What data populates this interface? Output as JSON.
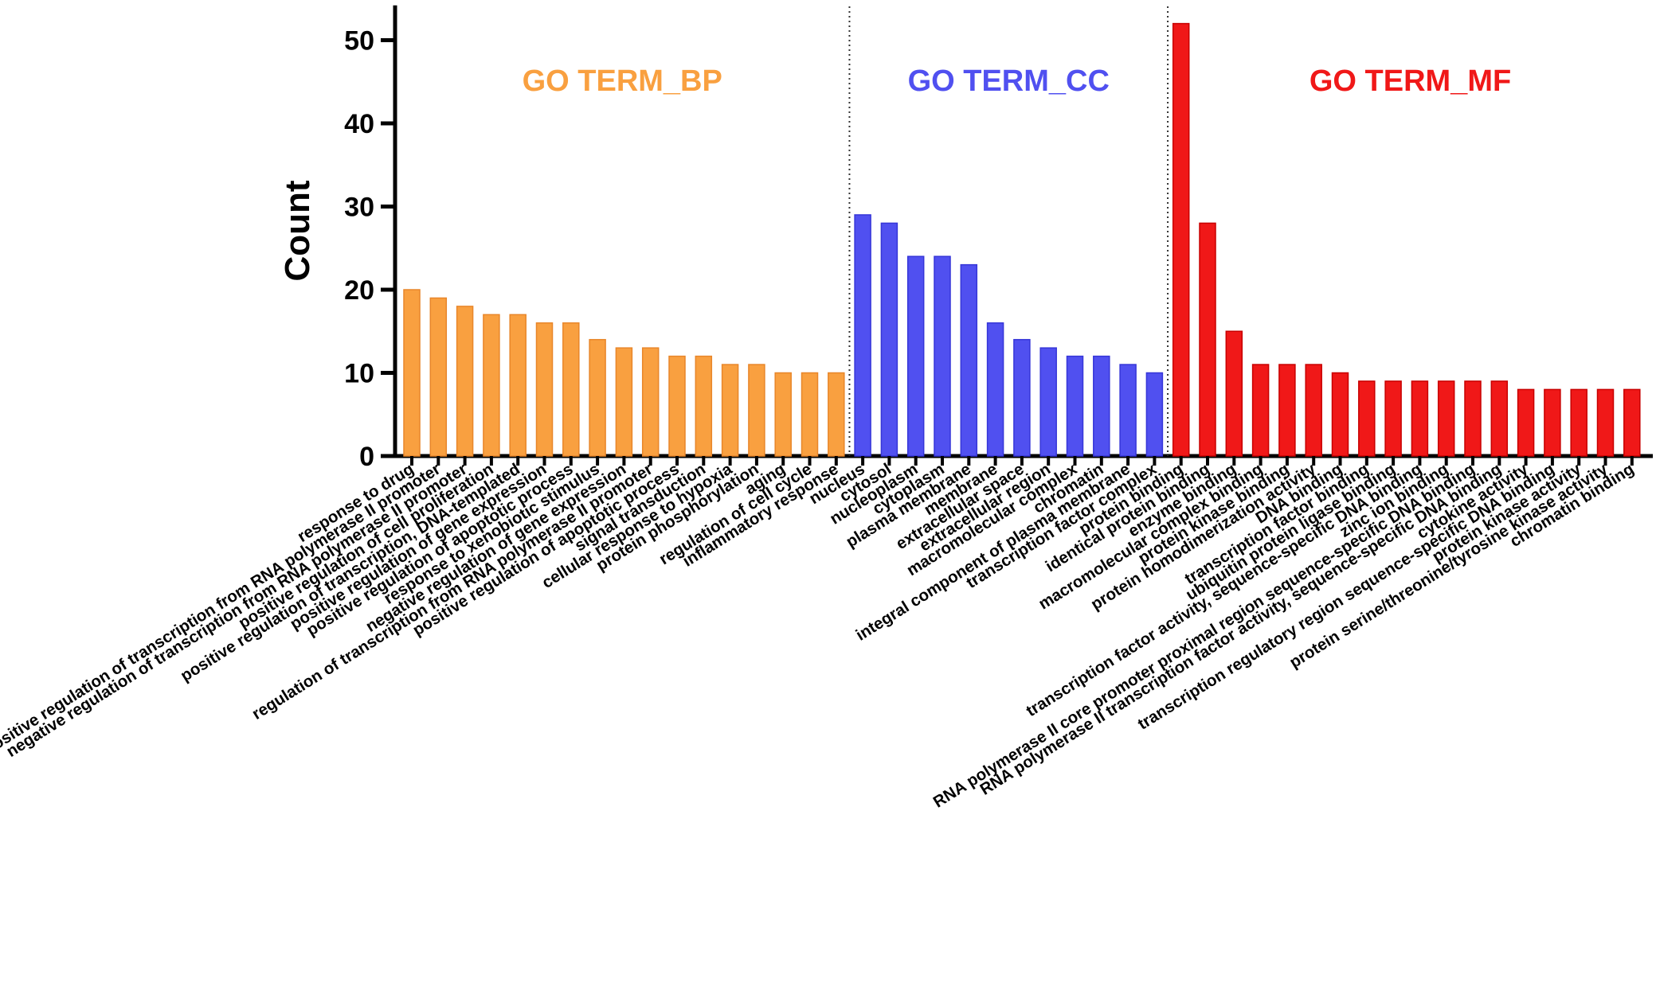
{
  "chart_data": {
    "type": "bar",
    "ylabel": "Count",
    "xlabel": "",
    "ylim": [
      0,
      54
    ],
    "yticks": [
      0,
      10,
      20,
      30,
      40,
      50
    ],
    "grid": false,
    "groups": [
      {
        "name": "GO TERM_BP",
        "color": "#F9A040",
        "stroke": "#E8862A",
        "categories": [
          "response to drug",
          "positive regulation of transcription from RNA polymerase II promoter",
          "negative regulation of transcription from RNA polymerase II promoter",
          "positive regulation of cell proliferation",
          "positive regulation of transcription, DNA-templated",
          "positive regulation of gene expression",
          "positive regulation of apoptotic process",
          "response to xenobiotic stimulus",
          "negative regulation of gene expression",
          "regulation of transcription from RNA polymerase II promoter",
          "positive regulation of apoptotic process",
          "signal transduction",
          "cellular response to hypoxia",
          "protein phosphorylation",
          "aging",
          "regulation of cell cycle",
          "inflammatory response"
        ],
        "values": [
          20,
          19,
          18,
          17,
          17,
          16,
          16,
          14,
          13,
          13,
          12,
          12,
          11,
          11,
          10,
          10,
          10
        ]
      },
      {
        "name": "GO TERM_CC",
        "color": "#5050F0",
        "stroke": "#3636D8",
        "categories": [
          "nucleus",
          "cytosol",
          "nucleoplasm",
          "cytoplasm",
          "plasma membrane",
          "membrane",
          "extracellular space",
          "extracellular region",
          "macromolecular complex",
          "chromatin",
          "integral component of plasma membrane",
          "transcription factor complex"
        ],
        "values": [
          29,
          28,
          24,
          24,
          23,
          16,
          14,
          13,
          12,
          12,
          11,
          10
        ]
      },
      {
        "name": "GO TERM_MF",
        "color": "#F01818",
        "stroke": "#C80000",
        "categories": [
          "protein binding",
          "identical protein binding",
          "enzyme binding",
          "macromolecular complex binding",
          "protein kinase binding",
          "protein homodimerization activity",
          "DNA binding",
          "transcription factor binding",
          "ubiquitin protein ligase binding",
          "transcription factor activity, sequence-specific DNA binding",
          "zinc ion binding",
          "RNA polymerase II core promoter proximal region sequence-specific DNA binding",
          "RNA polymerase II transcription factor activity, sequence-specific DNA binding",
          "cytokine activity",
          "transcription regulatory region sequence-specific DNA binding",
          "protein kinase activity",
          "protein serine/threonine/tyrosine kinase activity",
          "chromatin binding"
        ],
        "values": [
          52,
          28,
          15,
          11,
          11,
          11,
          10,
          9,
          9,
          9,
          9,
          9,
          9,
          8,
          8,
          8,
          8,
          8
        ]
      }
    ]
  }
}
